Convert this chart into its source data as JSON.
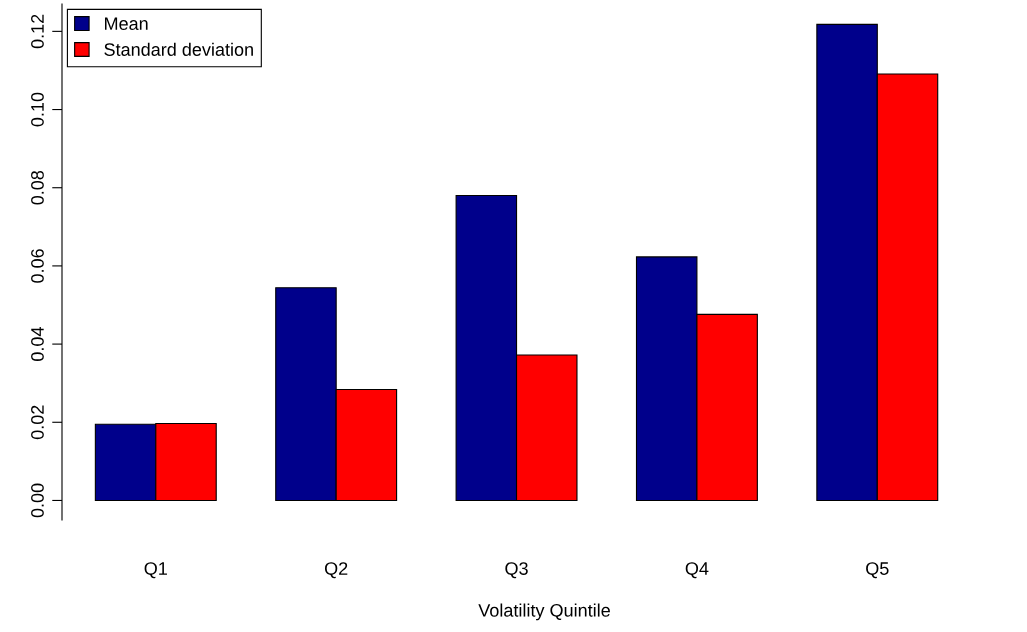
{
  "chart_data": {
    "type": "bar",
    "xlabel": "Volatility Quintile",
    "categories": [
      "Q1",
      "Q2",
      "Q3",
      "Q4",
      "Q5"
    ],
    "series": [
      {
        "name": "Mean",
        "color": "#00008b",
        "values": [
          0.0195,
          0.0544,
          0.078,
          0.0623,
          0.1218
        ]
      },
      {
        "name": "Standard deviation",
        "color": "#ff0000",
        "values": [
          0.0197,
          0.0284,
          0.0372,
          0.0476,
          0.1091
        ]
      }
    ],
    "ylim": [
      -0.005,
      0.127
    ],
    "yticks": [
      {
        "value": 0,
        "label": "0.00"
      },
      {
        "value": 0.02,
        "label": "0.02"
      },
      {
        "value": 0.04,
        "label": "0.04"
      },
      {
        "value": 0.06,
        "label": "0.06"
      },
      {
        "value": 0.08,
        "label": "0.08"
      },
      {
        "value": 0.1,
        "label": "0.10"
      },
      {
        "value": 0.12,
        "label": "0.12"
      }
    ],
    "grid": false,
    "legend": "top left"
  }
}
